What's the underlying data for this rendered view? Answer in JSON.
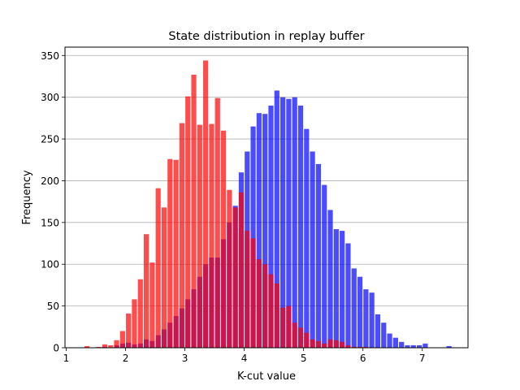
{
  "chart_data": {
    "type": "bar",
    "title": "State distribution in replay buffer",
    "xlabel": "K-cut value",
    "ylabel": "Frequency",
    "xlim": [
      0.98,
      7.77
    ],
    "ylim": [
      0,
      360
    ],
    "xticks": [
      1,
      2,
      3,
      4,
      5,
      6,
      7
    ],
    "yticks": [
      0,
      50,
      100,
      150,
      200,
      250,
      300,
      350
    ],
    "grid": "horizontal",
    "bin_width": 0.1,
    "series": [
      {
        "color": "#0000ff",
        "opacity": 0.7,
        "x": [
          1.65,
          1.75,
          1.85,
          1.95,
          2.05,
          2.15,
          2.25,
          2.35,
          2.45,
          2.55,
          2.65,
          2.75,
          2.85,
          2.95,
          3.05,
          3.15,
          3.25,
          3.35,
          3.45,
          3.55,
          3.65,
          3.75,
          3.85,
          3.95,
          4.05,
          4.15,
          4.25,
          4.35,
          4.45,
          4.55,
          4.65,
          4.75,
          4.85,
          4.95,
          5.05,
          5.15,
          5.25,
          5.35,
          5.45,
          5.55,
          5.65,
          5.75,
          5.85,
          5.95,
          6.05,
          6.15,
          6.25,
          6.35,
          6.45,
          6.55,
          6.65,
          6.75,
          6.85,
          6.95,
          7.05,
          7.15,
          7.25,
          7.35,
          7.45
        ],
        "values": [
          1,
          0,
          3,
          5,
          6,
          4,
          5,
          10,
          8,
          15,
          22,
          30,
          38,
          47,
          58,
          70,
          85,
          100,
          108,
          108,
          130,
          150,
          170,
          210,
          235,
          265,
          281,
          280,
          290,
          308,
          300,
          298,
          300,
          290,
          262,
          235,
          220,
          195,
          165,
          142,
          140,
          125,
          95,
          85,
          70,
          66,
          40,
          30,
          17,
          12,
          7,
          3,
          3,
          3,
          5,
          0,
          0,
          0,
          2
        ]
      },
      {
        "color": "#ff0000",
        "opacity": 0.7,
        "x": [
          1.35,
          1.45,
          1.55,
          1.65,
          1.75,
          1.85,
          1.95,
          2.05,
          2.15,
          2.25,
          2.35,
          2.45,
          2.55,
          2.65,
          2.75,
          2.85,
          2.95,
          3.05,
          3.15,
          3.25,
          3.35,
          3.45,
          3.55,
          3.65,
          3.75,
          3.85,
          3.95,
          4.05,
          4.15,
          4.25,
          4.35,
          4.45,
          4.55,
          4.65,
          4.75,
          4.85,
          4.95,
          5.05,
          5.15,
          5.25,
          5.35,
          5.45,
          5.55,
          5.65,
          5.75,
          5.85,
          5.95,
          6.05,
          6.15,
          6.25,
          6.35
        ],
        "values": [
          2,
          0,
          1,
          4,
          3,
          9,
          20,
          41,
          58,
          82,
          136,
          102,
          191,
          168,
          226,
          225,
          269,
          301,
          327,
          267,
          344,
          268,
          299,
          260,
          189,
          168,
          186,
          140,
          131,
          106,
          100,
          88,
          77,
          48,
          50,
          30,
          24,
          18,
          10,
          8,
          5,
          10,
          9,
          7,
          3,
          1,
          1,
          1,
          0,
          0,
          0
        ]
      }
    ]
  }
}
